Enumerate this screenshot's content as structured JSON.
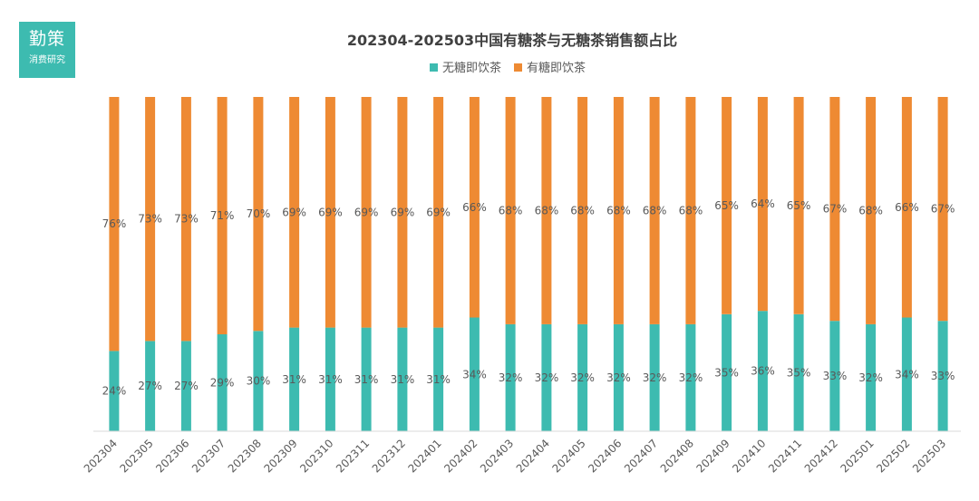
{
  "logo": {
    "main": "勤策",
    "sub": "消费研究"
  },
  "colors": {
    "sugar_free": "#3dbbb0",
    "sugared": "#ee8a33",
    "axis": "#d9d9d9",
    "text": "#595959"
  },
  "chart_data": {
    "type": "bar",
    "stacked": true,
    "percent_stacked": true,
    "title": "202304-202503中国有糖茶与无糖茶销售额占比",
    "legend_position": "top",
    "ylim": [
      0,
      100
    ],
    "grid": false,
    "categories": [
      "202304",
      "202305",
      "202306",
      "202307",
      "202308",
      "202309",
      "202310",
      "202311",
      "202312",
      "202401",
      "202402",
      "202403",
      "202404",
      "202405",
      "202406",
      "202407",
      "202408",
      "202409",
      "202410",
      "202411",
      "202412",
      "202501",
      "202502",
      "202503"
    ],
    "series": [
      {
        "name": "无糖即饮茶",
        "values": [
          24,
          27,
          27,
          29,
          30,
          31,
          31,
          31,
          31,
          31,
          34,
          32,
          32,
          32,
          32,
          32,
          32,
          35,
          36,
          35,
          33,
          32,
          34,
          33
        ]
      },
      {
        "name": "有糖即饮茶",
        "values": [
          76,
          73,
          73,
          71,
          70,
          69,
          69,
          69,
          69,
          69,
          66,
          68,
          68,
          68,
          68,
          68,
          68,
          65,
          64,
          65,
          67,
          68,
          66,
          67
        ]
      }
    ]
  }
}
